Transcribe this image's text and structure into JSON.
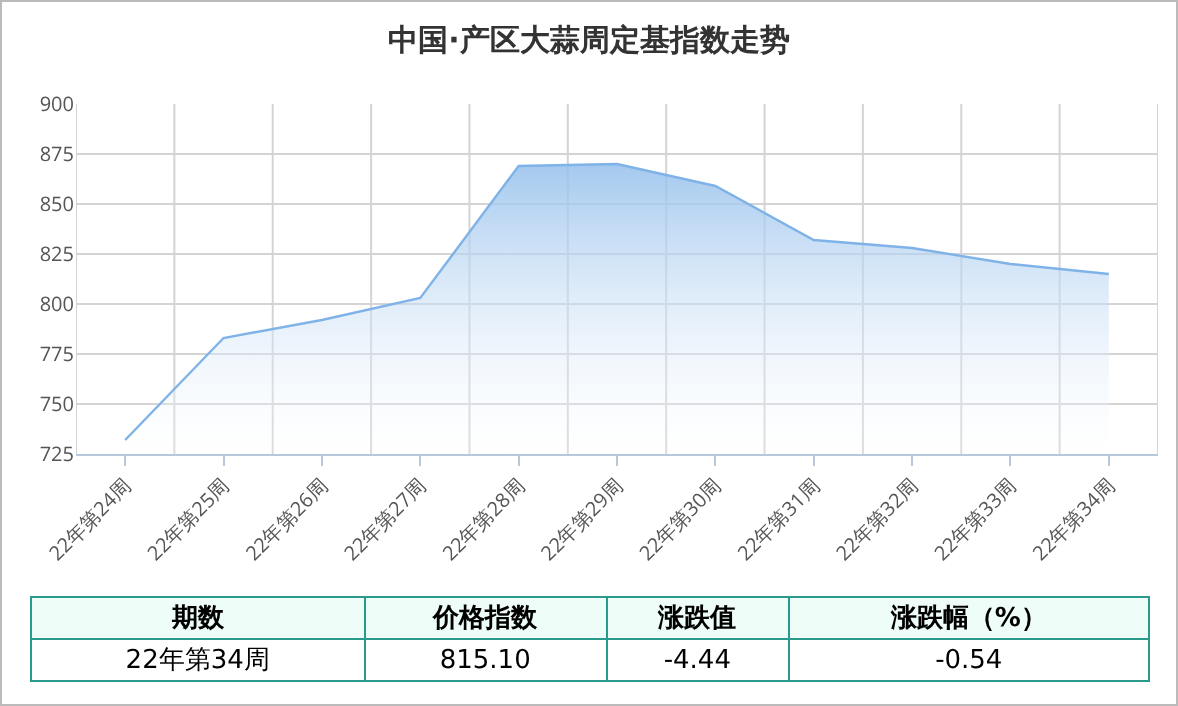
{
  "chart_data": {
    "type": "area",
    "title": "中国·产区大蒜周定基指数走势",
    "categories": [
      "22年第24周",
      "22年第25周",
      "22年第26周",
      "22年第27周",
      "22年第28周",
      "22年第29周",
      "22年第30周",
      "22年第31周",
      "22年第32周",
      "22年第33周",
      "22年第34周"
    ],
    "series": [
      {
        "color": "#7fb3e8",
        "values": [
          732,
          783,
          792,
          803,
          869,
          870,
          859,
          832,
          828,
          820,
          815
        ]
      }
    ],
    "ylim": [
      725,
      900
    ],
    "yticks": [
      725,
      750,
      775,
      800,
      825,
      850,
      875,
      900
    ],
    "grid": true,
    "marker": "none",
    "annotations": [
      "期数",
      "价格指数",
      "涨跌值",
      "涨跌幅（%）",
      "22年第34周",
      "815.10",
      "-4.44",
      "-0.54"
    ]
  }
}
